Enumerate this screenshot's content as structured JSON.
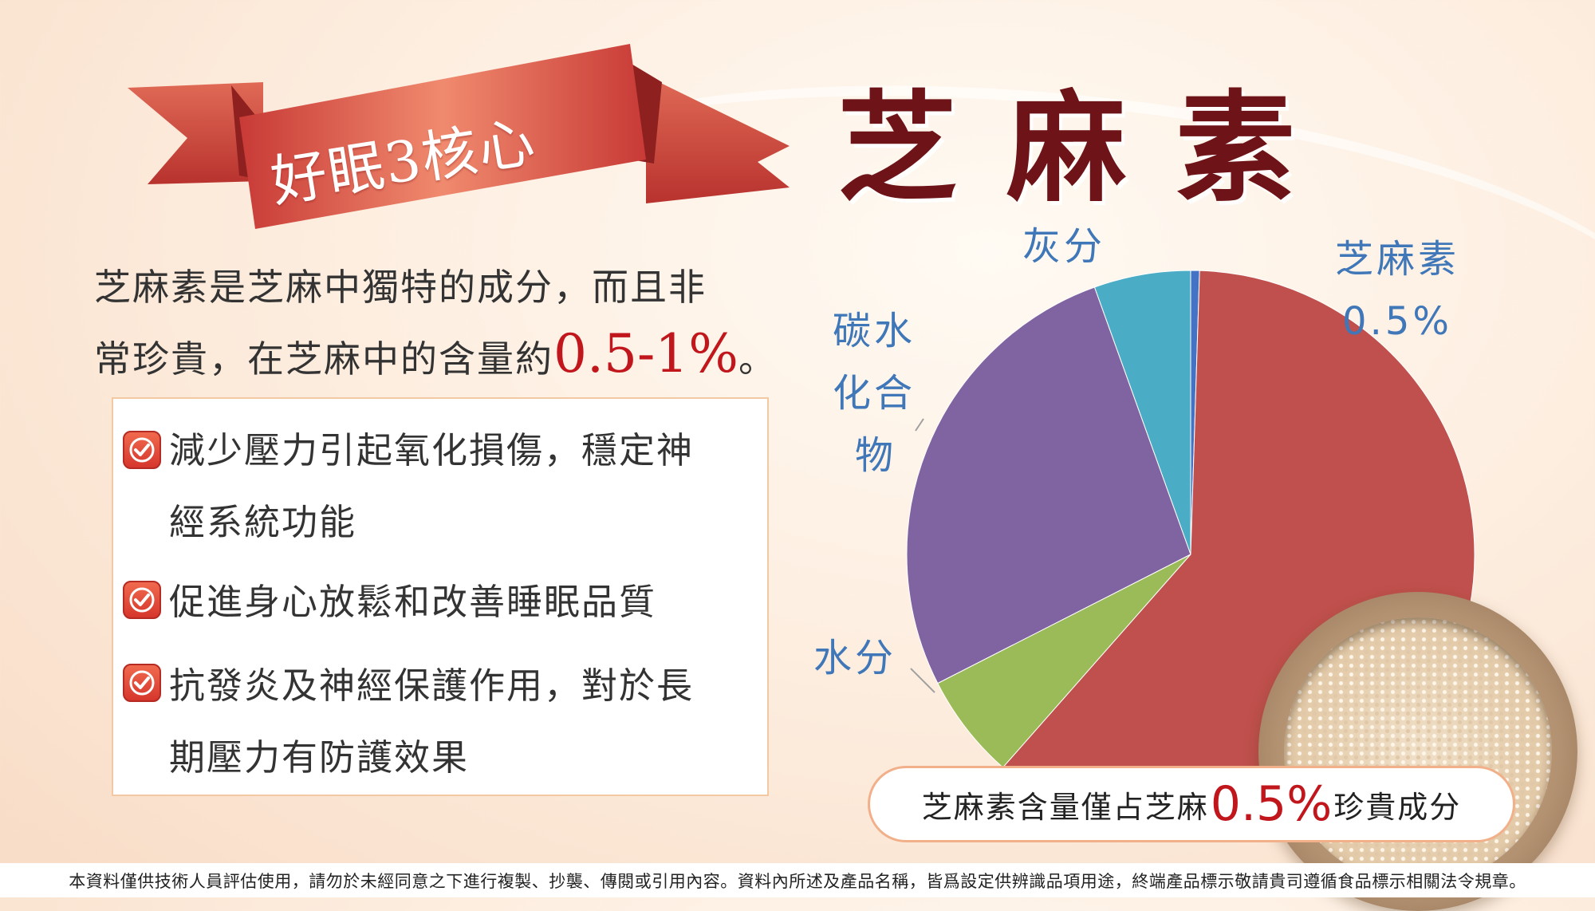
{
  "ribbon": {
    "text": "好眠3核心"
  },
  "title": "芝麻素",
  "intro": {
    "line1": "芝麻素是芝麻中獨特的成分，而且非",
    "line2_pre": "常珍貴，在芝麻中的含量約",
    "line2_highlight": "0.5-1%",
    "line2_post": "。"
  },
  "benefits": [
    {
      "icon": "checkbox-icon",
      "lines": [
        "減少壓力引起氧化損傷，穩定神",
        "經系統功能"
      ]
    },
    {
      "icon": "checkbox-icon",
      "lines": [
        "促進身心放鬆和改善睡眠品質"
      ]
    },
    {
      "icon": "checkbox-icon",
      "lines": [
        "抗發炎及神經保護作用，對於長",
        "期壓力有防護效果"
      ]
    }
  ],
  "chart_data": {
    "type": "pie",
    "slices": [
      {
        "label": "芝麻素",
        "value": 0.5,
        "value_label": "0.5%",
        "color": "#4472c4"
      },
      {
        "label": "灰分",
        "value": 5.5,
        "color": "#4bacc6"
      },
      {
        "label": "碳水化合物",
        "label_lines": [
          "碳水",
          "化合",
          "物"
        ],
        "value": 27,
        "color": "#8064a2"
      },
      {
        "label": "水分",
        "value": 6,
        "color": "#9bbb59"
      },
      {
        "label": "",
        "value": 61,
        "color": "#c0504d"
      }
    ]
  },
  "callout": {
    "pre": "芝麻素含量僅占芝麻",
    "highlight": "0.5%",
    "post": "珍貴成分"
  },
  "footer": "本資料僅供技術人員評估使用，請勿於未經同意之下進行複製、抄襲、傳閱或引用內容。資料內所述及產品名稱，皆爲設定供辨識品項用途，終端產品標示敬請貴司遵循食品標示相關法令規章。",
  "colors": {
    "accent": "#c0161c",
    "title": "#6e1418",
    "ribbon": "#d94f4a",
    "label": "#3f77b8"
  }
}
